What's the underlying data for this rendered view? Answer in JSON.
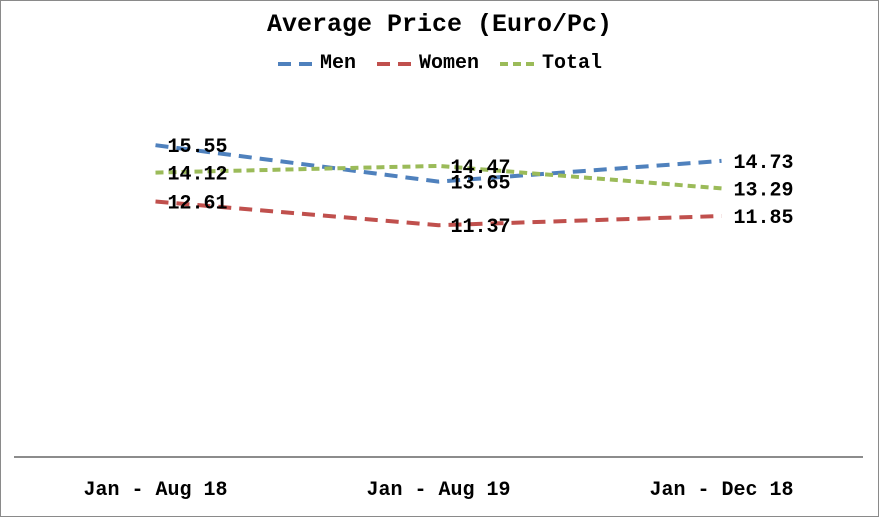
{
  "chart_data": {
    "type": "line",
    "title": "Average Price (Euro/Pc)",
    "categories": [
      "Jan - Aug 18",
      "Jan - Aug 19",
      "Jan - Dec 18"
    ],
    "series": [
      {
        "name": "Men",
        "values": [
          15.55,
          13.65,
          14.73
        ],
        "color": "#4F81BD",
        "dash": "long"
      },
      {
        "name": "Women",
        "values": [
          12.61,
          11.37,
          11.85
        ],
        "color": "#C0504D",
        "dash": "long"
      },
      {
        "name": "Total",
        "values": [
          14.12,
          14.47,
          13.29
        ],
        "color": "#9BBB59",
        "dash": "short"
      }
    ],
    "ylim": [
      9.5,
      16.5
    ],
    "xlabel": "",
    "ylabel": "",
    "grid": false,
    "y_axis_visible": false,
    "legend_position": "top",
    "data_labels_position": "right",
    "axis_color": "#8C8C8C",
    "text_color": "#000000"
  }
}
